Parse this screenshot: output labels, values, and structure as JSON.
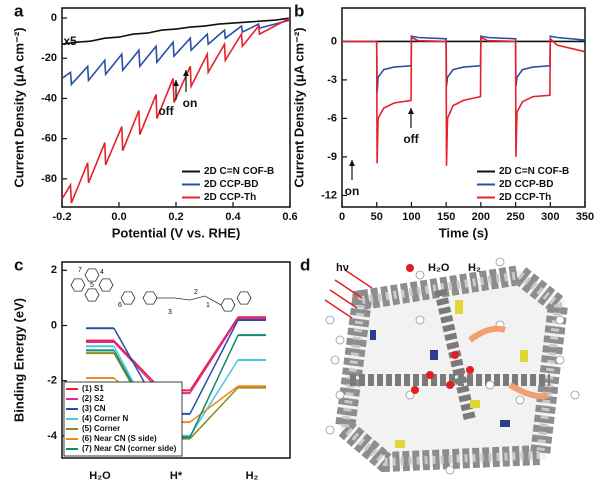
{
  "chart_data": [
    {
      "type": "line",
      "label": "a",
      "x_label": "Potential (V vs. RHE)",
      "y_label": "Current Density (μA cm⁻²)",
      "xlim": [
        -0.2,
        0.6
      ],
      "xticks": [
        -0.2,
        {
          "value": 0,
          "label": "0.0"
        },
        0.2,
        0.4,
        0.6
      ],
      "ylim": [
        -94,
        5
      ],
      "yticks": [
        0,
        -20,
        -40,
        -60,
        -80
      ],
      "legend": "lower right",
      "annotations": [
        "x5",
        "off",
        "on"
      ],
      "series": [
        {
          "name": "2D C=N COF-B",
          "color": "#111111",
          "x": [
            -0.2,
            -0.15,
            -0.1,
            -0.05,
            0,
            0.05,
            0.1,
            0.15,
            0.2,
            0.25,
            0.3,
            0.35,
            0.4,
            0.45,
            0.5,
            0.55,
            0.6
          ],
          "values": [
            -13,
            -12,
            -11.5,
            -10,
            -9.5,
            -8,
            -7.5,
            -6,
            -5.5,
            -4.5,
            -4,
            -3,
            -2.5,
            -2,
            -1.5,
            -1,
            0
          ]
        },
        {
          "name": "2D CCP-BD",
          "color": "#2a4fa8",
          "x": [
            -0.2,
            -0.17,
            -0.167,
            -0.11,
            -0.107,
            -0.05,
            -0.047,
            0.01,
            0.013,
            0.07,
            0.073,
            0.13,
            0.133,
            0.19,
            0.193,
            0.25,
            0.253,
            0.31,
            0.313,
            0.37,
            0.373,
            0.43,
            0.433,
            0.49,
            0.493,
            0.6
          ],
          "values": [
            -30,
            -27,
            -33,
            -24,
            -31,
            -21,
            -28,
            -18,
            -26,
            -16,
            -24,
            -14,
            -22,
            -12,
            -19,
            -10,
            -16,
            -8,
            -13,
            -6,
            -10,
            -4,
            -7,
            -3,
            -5,
            -1
          ]
        },
        {
          "name": "2D CCP-Th",
          "color": "#e8202a",
          "x": [
            -0.2,
            -0.17,
            -0.167,
            -0.11,
            -0.107,
            -0.05,
            -0.047,
            0.01,
            0.013,
            0.07,
            0.073,
            0.13,
            0.133,
            0.19,
            0.193,
            0.25,
            0.253,
            0.31,
            0.313,
            0.37,
            0.373,
            0.43,
            0.433,
            0.49,
            0.493,
            0.6
          ],
          "values": [
            -90,
            -83,
            -92,
            -72,
            -82,
            -62,
            -73,
            -54,
            -66,
            -46,
            -58,
            -38,
            -50,
            -30,
            -42,
            -24,
            -34,
            -18,
            -27,
            -13,
            -21,
            -8,
            -14,
            -4,
            -8,
            0
          ]
        }
      ]
    },
    {
      "type": "line",
      "label": "b",
      "x_label": "Time (s)",
      "y_label": "Current Density (μA cm⁻²)",
      "xlim": [
        0,
        350
      ],
      "xticks": [
        0,
        50,
        100,
        150,
        200,
        250,
        300,
        350
      ],
      "ylim": [
        -12.9,
        2.6
      ],
      "yticks": [
        0,
        -3,
        -6,
        -9,
        -12
      ],
      "legend": "lower right",
      "annotations": [
        "on",
        "off"
      ],
      "series": [
        {
          "name": "2D C=N COF-B",
          "color": "#111111",
          "x": [
            0,
            350
          ],
          "values": [
            0,
            0
          ]
        },
        {
          "name": "2D CCP-BD",
          "color": "#2a4fa8",
          "x": [
            0,
            50,
            50.5,
            52,
            60,
            75,
            99.5,
            100,
            110,
            150,
            150.5,
            152,
            160,
            175,
            199.5,
            200,
            210,
            250,
            250.5,
            252,
            260,
            275,
            299.5,
            300,
            310,
            350
          ],
          "values": [
            0,
            0,
            -4,
            -2.8,
            -2.2,
            -2,
            -1.9,
            0.4,
            0.3,
            0.2,
            -3.5,
            -2.8,
            -2.2,
            -2,
            -1.9,
            0.4,
            0.3,
            0.2,
            -3.5,
            -2.8,
            -2.2,
            -2,
            -1.9,
            0.4,
            0.3,
            0.1
          ]
        },
        {
          "name": "2D CCP-Th",
          "color": "#e8202a",
          "x": [
            0,
            50,
            50.5,
            52,
            60,
            75,
            99.5,
            100,
            110,
            150,
            150.5,
            152,
            160,
            175,
            199.5,
            200,
            210,
            250,
            250.5,
            252,
            260,
            275,
            299.5,
            300,
            310,
            350
          ],
          "values": [
            0,
            0,
            -9.5,
            -6,
            -5.2,
            -4.8,
            -4.6,
            0.3,
            0.05,
            0,
            -9.7,
            -6,
            -5,
            -4.6,
            -4.3,
            0.3,
            0.05,
            0,
            -9,
            -5.5,
            -4.7,
            -4.3,
            -4.2,
            0.2,
            -0.3,
            -0.8
          ]
        }
      ]
    },
    {
      "type": "energy",
      "label": "c",
      "y_label": "Binding Energy (eV)",
      "categories": [
        "H₂O",
        "H*",
        "H₂"
      ],
      "ylim": [
        -4.8,
        2.3
      ],
      "yticks": [
        2,
        0,
        -2,
        -4
      ],
      "legend": "lower left",
      "inset_labels": [
        "5",
        "4",
        "7",
        "6",
        "3",
        "2",
        "1"
      ],
      "series": [
        {
          "name": "(1) S1",
          "color": "#e8202a",
          "values": [
            -0.55,
            -2.35,
            0.3
          ]
        },
        {
          "name": "(2) S2",
          "color": "#e0259a",
          "values": [
            -0.6,
            -2.45,
            0.25
          ]
        },
        {
          "name": "(3) CN",
          "color": "#2a4fa8",
          "values": [
            -0.1,
            -3.2,
            0.2
          ]
        },
        {
          "name": "(4) Corner N",
          "color": "#4cc6e0",
          "values": [
            -0.75,
            -4.0,
            -1.25
          ]
        },
        {
          "name": "(5) Corner",
          "color": "#8c8c1e",
          "values": [
            -1.0,
            -4.1,
            -2.25
          ]
        },
        {
          "name": "(6) Near CN (S side)",
          "color": "#f08a1c",
          "values": [
            -1.9,
            -3.5,
            -2.2
          ]
        },
        {
          "name": "(7) Near CN (corner side)",
          "color": "#138a6a",
          "values": [
            -0.9,
            -4.05,
            -0.35
          ]
        }
      ]
    }
  ],
  "illustration": {
    "label": "d",
    "light": "hν",
    "water": "H₂O",
    "hydrogen": "H₂"
  }
}
